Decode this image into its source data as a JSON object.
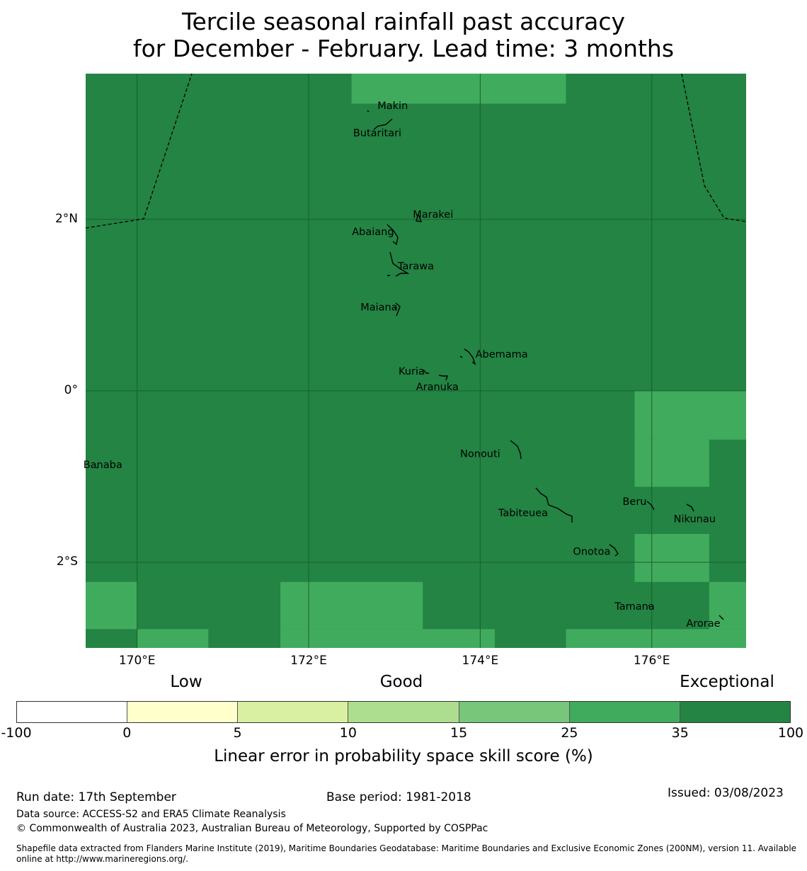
{
  "title": {
    "line1": "Tercile seasonal rainfall past accuracy",
    "line2": "for December - February. Lead time: 3 months"
  },
  "map": {
    "lat_labels": [
      {
        "label": "2°N",
        "lat": 2
      },
      {
        "label": "0°",
        "lat": 0
      },
      {
        "label": "2°S",
        "lat": -2
      }
    ],
    "lon_labels": [
      {
        "label": "170°E",
        "lon": 170
      },
      {
        "label": "172°E",
        "lon": 172
      },
      {
        "label": "174°E",
        "lon": 174
      },
      {
        "label": "176°E",
        "lon": 176
      }
    ],
    "extent": {
      "lon_min": 169.4,
      "lon_max": 177.1,
      "lat_min": -3.0,
      "lat_max": 3.7
    },
    "colors": {
      "exceptional": "#238443",
      "high": "#41ab5d",
      "grid": "#1a5e30",
      "coast": "#000000"
    },
    "high_skill_cells": [
      {
        "lon0": 172.5,
        "lon1": 175.0,
        "lat0": 3.35,
        "lat1": 3.7
      },
      {
        "lon0": 175.8,
        "lon1": 177.1,
        "lat0": -0.57,
        "lat1": 0.0
      },
      {
        "lon0": 175.8,
        "lon1": 176.67,
        "lat0": -1.12,
        "lat1": -0.57
      },
      {
        "lon0": 175.8,
        "lon1": 176.67,
        "lat0": -2.23,
        "lat1": -1.67
      },
      {
        "lon0": 176.67,
        "lon1": 177.1,
        "lat0": -2.78,
        "lat1": -2.23
      },
      {
        "lon0": 169.4,
        "lon1": 170.0,
        "lat0": -2.78,
        "lat1": -2.23
      },
      {
        "lon0": 170.0,
        "lon1": 170.83,
        "lat0": -3.0,
        "lat1": -2.78
      },
      {
        "lon0": 171.67,
        "lon1": 173.33,
        "lat0": -2.78,
        "lat1": -2.23
      },
      {
        "lon0": 171.67,
        "lon1": 174.17,
        "lat0": -3.0,
        "lat1": -2.78
      },
      {
        "lon0": 175.0,
        "lon1": 177.1,
        "lat0": -3.0,
        "lat1": -2.78
      }
    ],
    "places": [
      {
        "name": "Makin",
        "lon": 172.98,
        "lat": 3.32
      },
      {
        "name": "Butaritari",
        "lon": 172.8,
        "lat": 3.0
      },
      {
        "name": "Marakei",
        "lon": 173.45,
        "lat": 2.05
      },
      {
        "name": "Abaiang",
        "lon": 172.75,
        "lat": 1.85
      },
      {
        "name": "Tarawa",
        "lon": 173.25,
        "lat": 1.45
      },
      {
        "name": "Maiana",
        "lon": 172.82,
        "lat": 0.97
      },
      {
        "name": "Abemama",
        "lon": 174.25,
        "lat": 0.42
      },
      {
        "name": "Kuria",
        "lon": 173.2,
        "lat": 0.22
      },
      {
        "name": "Aranuka",
        "lon": 173.5,
        "lat": 0.04
      },
      {
        "name": "Nonouti",
        "lon": 174.0,
        "lat": -0.74
      },
      {
        "name": "Banaba",
        "lon": 169.6,
        "lat": -0.87
      },
      {
        "name": "Beru",
        "lon": 175.8,
        "lat": -1.3
      },
      {
        "name": "Tabiteuea",
        "lon": 174.5,
        "lat": -1.43
      },
      {
        "name": "Nikunau",
        "lon": 176.5,
        "lat": -1.5
      },
      {
        "name": "Onotoa",
        "lon": 175.3,
        "lat": -1.88
      },
      {
        "name": "Tamana",
        "lon": 175.8,
        "lat": -2.52
      },
      {
        "name": "Arorae",
        "lon": 176.6,
        "lat": -2.72
      }
    ]
  },
  "legend": {
    "categories": {
      "low": "Low",
      "good": "Good",
      "exceptional": "Exceptional"
    },
    "ticks": [
      "-100",
      "0",
      "5",
      "10",
      "15",
      "25",
      "35",
      "100"
    ],
    "colors": [
      "#ffffff",
      "#ffffcc",
      "#d9f0a3",
      "#addd8e",
      "#78c679",
      "#41ab5d",
      "#238443"
    ],
    "title": "Linear error in probability space skill score (%)"
  },
  "footer": {
    "run_date": "Run date: 17th September",
    "base_period": "Base period: 1981-2018",
    "issued": "Issued: 03/08/2023",
    "data_source": "Data source: ACCESS-S2 and ERA5 Climate Reanalysis",
    "copyright": "© Commonwealth of Australia 2023, Australian Bureau of Meteorology, Supported by COSPPac",
    "shapefile": "Shapefile data extracted from Flanders Marine Institute (2019), Maritime Boundaries Geodatabase: Maritime Boundaries and Exclusive Economic Zones (200NM), version 11. Available online at http://www.marineregions.org/."
  }
}
